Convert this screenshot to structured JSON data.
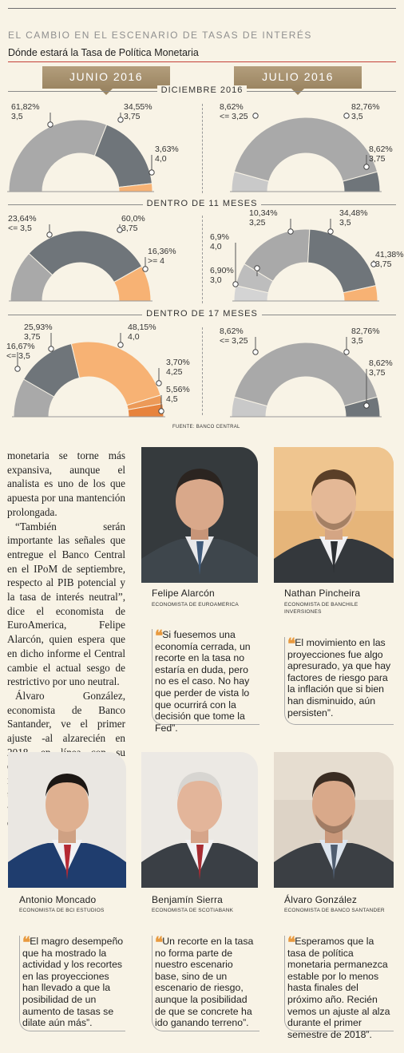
{
  "header": {
    "title": "EL CAMBIO EN EL ESCENARIO DE TASAS DE INTERÉS",
    "subtitle": "Dónde estará la Tasa de Política Monetaria",
    "tab_left": "JUNIO 2016",
    "tab_right": "JULIO 2016"
  },
  "sections": [
    "DICIEMBRE 2016",
    "DENTRO DE 11 MESES",
    "DENTRO DE 17 MESES"
  ],
  "source": "FUENTE: BANCO CENTRAL",
  "colors": {
    "light_gray": "#a9a9a9",
    "dark_gray": "#6f757a",
    "light_orange": "#f7b274",
    "dark_orange": "#e7833d",
    "pale_gray": "#c9c9c9"
  },
  "chart_data": [
    {
      "type": "pie",
      "id": "dic-junio",
      "period": "DICIEMBRE 2016",
      "survey": "JUNIO 2016",
      "slices": [
        {
          "rate": "3,5",
          "percent": "61,82%",
          "value": 61.82,
          "color": "#a9a9a9",
          "label": [
            "61,82%",
            "3,5"
          ]
        },
        {
          "rate": "3,75",
          "percent": "34,55%",
          "value": 34.55,
          "color": "#6f757a",
          "label": [
            "34,55%",
            "3,75"
          ]
        },
        {
          "rate": "4,0",
          "percent": "3,63%",
          "value": 3.63,
          "color": "#f7b274",
          "label": [
            "3,63%",
            "4,0"
          ]
        }
      ]
    },
    {
      "type": "pie",
      "id": "dic-julio",
      "period": "DICIEMBRE 2016",
      "survey": "JULIO 2016",
      "slices": [
        {
          "rate": "<= 3,25",
          "percent": "8,62%",
          "value": 8.62,
          "color": "#c9c9c9",
          "label": [
            "8,62%",
            "<= 3,25"
          ]
        },
        {
          "rate": "3,5",
          "percent": "82,76%",
          "value": 82.76,
          "color": "#a9a9a9",
          "label": [
            "82,76%",
            "3,5"
          ]
        },
        {
          "rate": "3,75",
          "percent": "8,62%",
          "value": 8.62,
          "color": "#6f757a",
          "label": [
            "8,62%",
            "3,75"
          ]
        }
      ]
    },
    {
      "type": "pie",
      "id": "11m-junio",
      "period": "DENTRO DE 11 MESES",
      "survey": "JUNIO 2016",
      "slices": [
        {
          "rate": "<= 3,5",
          "percent": "23,64%",
          "value": 23.64,
          "color": "#a9a9a9",
          "label": [
            "23,64%",
            "<= 3,5"
          ]
        },
        {
          "rate": "3,75",
          "percent": "60,0%",
          "value": 60.0,
          "color": "#6f757a",
          "label": [
            "60,0%",
            "3,75"
          ]
        },
        {
          "rate": ">= 4",
          "percent": "16,36%",
          "value": 16.36,
          "color": "#f7b274",
          "label": [
            "16,36%",
            ">= 4"
          ]
        }
      ]
    },
    {
      "type": "pie",
      "id": "11m-julio",
      "period": "DENTRO DE 11 MESES",
      "survey": "JULIO 2016",
      "slices": [
        {
          "rate": "3,0",
          "percent": "6,90%",
          "value": 6.9,
          "color": "#d4d4d4",
          "label": [
            "6,90%",
            "3,0"
          ]
        },
        {
          "rate": "3,25",
          "percent": "10,34%",
          "value": 10.34,
          "color": "#bdbdbd",
          "label": [
            "10,34%",
            "3,25"
          ]
        },
        {
          "rate": "3,5",
          "percent": "34,48%",
          "value": 34.48,
          "color": "#a9a9a9",
          "label": [
            "34,48%",
            "3,5"
          ]
        },
        {
          "rate": "3,75",
          "percent": "41,38%",
          "value": 41.38,
          "color": "#6f757a",
          "label": [
            "41,38%",
            "3,75"
          ]
        },
        {
          "rate": "4,0",
          "percent": "6,9%",
          "value": 6.9,
          "color": "#f7b274",
          "label": [
            "6,9%",
            "4,0"
          ]
        }
      ]
    },
    {
      "type": "pie",
      "id": "17m-junio",
      "period": "DENTRO DE 17 MESES",
      "survey": "JUNIO 2016",
      "slices": [
        {
          "rate": "<= 3,5",
          "percent": "16,67%",
          "value": 16.67,
          "color": "#a9a9a9",
          "label": [
            "16,67%",
            "<= 3,5"
          ]
        },
        {
          "rate": "3,75",
          "percent": "25,93%",
          "value": 25.93,
          "color": "#6f757a",
          "label": [
            "25,93%",
            "3,75"
          ]
        },
        {
          "rate": "4,0",
          "percent": "48,15%",
          "value": 48.15,
          "color": "#f7b274",
          "label": [
            "48,15%",
            "4,0"
          ]
        },
        {
          "rate": "4,25",
          "percent": "3,70%",
          "value": 3.7,
          "color": "#ec9a58",
          "label": [
            "3,70%",
            "4,25"
          ]
        },
        {
          "rate": "4,5",
          "percent": "5,56%",
          "value": 5.56,
          "color": "#e7833d",
          "label": [
            "5,56%",
            "4,5"
          ]
        }
      ]
    },
    {
      "type": "pie",
      "id": "17m-julio",
      "period": "DENTRO DE 17 MESES",
      "survey": "JULIO 2016",
      "slices": [
        {
          "rate": "<= 3,25",
          "percent": "8,62%",
          "value": 8.62,
          "color": "#c9c9c9",
          "label": [
            "8,62%",
            "<= 3,25"
          ]
        },
        {
          "rate": "3,5",
          "percent": "82,76%",
          "value": 82.76,
          "color": "#a9a9a9",
          "label": [
            "82,76%",
            "3,5"
          ]
        },
        {
          "rate": "3,75",
          "percent": "8,62%",
          "value": 8.62,
          "color": "#6f757a",
          "label": [
            "8,62%",
            "3,75"
          ]
        }
      ]
    }
  ],
  "article": {
    "paragraphs": [
      "monetaria se torne más expansiva, aunque el analista es uno de los que apuesta por una mantención prolongada.",
      "“También serán importante las señales que entregue el Banco Central en el IPoM de septiembre, respecto al PIB potencial y la tasa de interés neutral”, dice el economista de EuroAmerica, Felipe Alarcón, quien espera que en dicho informe el Central cambie el actual sesgo de restrictivo por uno neutral.",
      "Álvaro González, economista de Banco Santander, ve el primer ajuste -al alzarecién en 2018, en línea con su escenario base con una inflación que irá cediendo y una actividad que será “algo” más dinámica que este año."
    ]
  },
  "experts": [
    {
      "name": "Felipe Alarcón",
      "role": "ECONOMISTA DE EUROAMERICA",
      "quote": "Si fuesemos una economía cerrada, un recorte en la tasa no estaría en duda, pero no es el caso. No hay que perder de vista lo que ocurrirá con la decisión que tome la Fed”."
    },
    {
      "name": "Nathan Pincheira",
      "role": "ECONOMISTA DE BANCHILE INVERSIONES",
      "quote": "El movimiento en las proyecciones fue algo apresurado, ya que hay factores de riesgo para la inflación que si bien han disminuido, aún persisten”."
    },
    {
      "name": "Antonio Moncado",
      "role": "ECONOMISTA DE BCI ESTUDIOS",
      "quote": "El magro desempeño que ha mostrado la actividad y los recortes en las proyecciones han llevado a que la posibilidad de un aumento de tasas se dilate aún más”."
    },
    {
      "name": "Benjamín Sierra",
      "role": "ECONOMISTA DE SCOTIABANK",
      "quote": "Un recorte en la tasa no forma parte de nuestro escenario base, sino de un escenario de riesgo, aunque la posibilidad de que se concrete ha ido ganando terreno”."
    },
    {
      "name": "Álvaro González",
      "role": "ECONOMISTA DE BANCO SANTANDER",
      "quote": "Esperamos que la tasa de política monetaria permanezca estable por lo menos hasta finales del próximo año. Recién vemos un ajuste al alza durante el primer semestre de 2018”."
    }
  ]
}
